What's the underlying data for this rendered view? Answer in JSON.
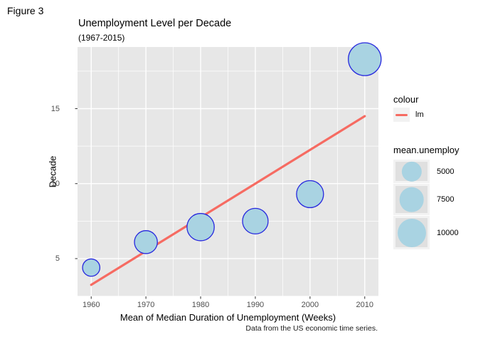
{
  "figure_label": "Figure 3",
  "chart": {
    "title": "Unemployment Level per Decade",
    "subtitle": "(1967-2015)",
    "xlabel": "Mean of Median Duration of Unemployment (Weeks)",
    "ylabel": "Decade",
    "caption": "Data from the US economic time series."
  },
  "colors": {
    "panel_bg": "#E7E7E7",
    "grid": "#FFFFFF",
    "bubble_fill": "#A9D3E2",
    "bubble_stroke": "#2727DE",
    "lm_line": "#F66B62",
    "tick_mark": "#333333",
    "tick_label": "#4D4D4D",
    "legend_key_bg": "#F2F2F2",
    "legend_key_inner": "#E0E0E0"
  },
  "chart_data": {
    "type": "scatter",
    "title": "Unemployment Level per Decade",
    "subtitle": "(1967-2015)",
    "xlabel": "Mean of Median Duration of Unemployment (Weeks)",
    "ylabel": "Decade",
    "x": [
      1960,
      1970,
      1980,
      1990,
      2000,
      2010
    ],
    "y": [
      4.4,
      6.1,
      7.1,
      7.5,
      9.3,
      18.3
    ],
    "size": [
      3700,
      6500,
      9200,
      8100,
      9000,
      13300
    ],
    "size_name": "mean.unemploy",
    "trend_line": {
      "name": "lm",
      "x1": 1960,
      "y1": 3.25,
      "x2": 2010,
      "y2": 14.5
    },
    "x_ticks": [
      1960,
      1970,
      1980,
      1990,
      2000,
      2010
    ],
    "y_ticks": [
      5,
      10,
      15
    ],
    "x_domain": [
      1957.5,
      2012.5
    ],
    "y_domain": [
      2.48,
      19.11
    ],
    "grid": true,
    "legend_position": "right"
  },
  "legend": {
    "colour": {
      "title": "colour",
      "items": [
        {
          "label": "lm"
        }
      ]
    },
    "size": {
      "title": "mean.unemploy",
      "items": [
        {
          "label": "5000",
          "value": 5000
        },
        {
          "label": "7500",
          "value": 7500
        },
        {
          "label": "10000",
          "value": 10000
        }
      ]
    }
  }
}
